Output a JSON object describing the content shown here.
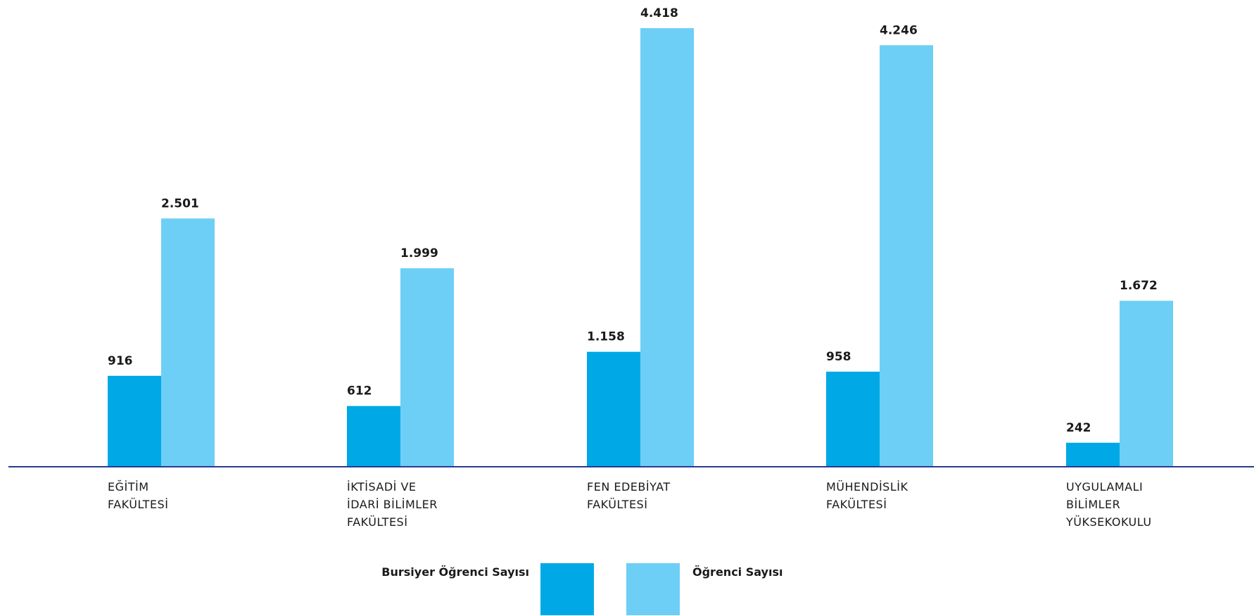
{
  "chart_data": {
    "type": "bar",
    "categories": [
      [
        "EĞİTİM",
        "FAKÜLTESİ"
      ],
      [
        "İKTİSADİ VE",
        "İDARİ BİLİMLER",
        "FAKÜLTESİ"
      ],
      [
        "FEN EDEBİYAT",
        "FAKÜLTESİ"
      ],
      [
        "MÜHENDİSLİK",
        "FAKÜLTESİ"
      ],
      [
        "UYGULAMALI",
        "BİLİMLER",
        "YÜKSEKOKULU"
      ]
    ],
    "series": [
      {
        "name": "Bursiyer Öğrenci Sayısı",
        "color": "#00a9e6",
        "values": [
          916,
          612,
          1158,
          958,
          242
        ],
        "labels": [
          "916",
          "612",
          "1.158",
          "958",
          "242"
        ]
      },
      {
        "name": "Öğrenci Sayısı",
        "color": "#6dcff5",
        "values": [
          2501,
          1999,
          4418,
          4246,
          1672
        ],
        "labels": [
          "2.501",
          "1.999",
          "4.418",
          "4.246",
          "1.672"
        ]
      }
    ],
    "ylim": [
      0,
      4418
    ],
    "axis_color": "#2b3990",
    "grid": false,
    "legend_position": "bottom-center"
  }
}
